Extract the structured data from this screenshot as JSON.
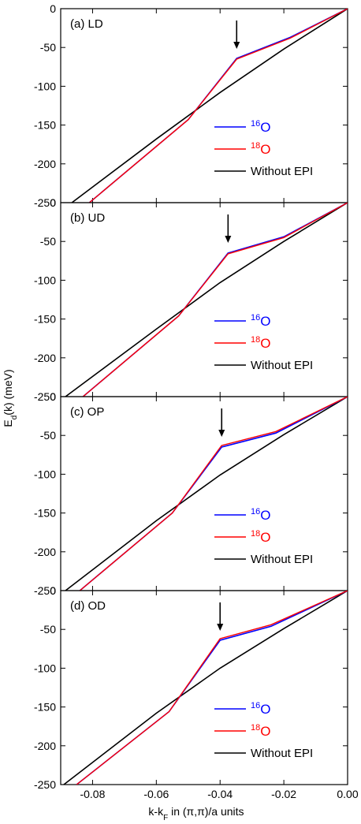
{
  "chart_data": {
    "type": "line",
    "xlabel": "k-k",
    "xlabel_sub": "F",
    "xlabel_rest": " in (π,π)/a units",
    "ylabel": "E",
    "ylabel_sub": "d",
    "ylabel_rest": "(k) (meV)",
    "xlim": [
      -0.09,
      0.0
    ],
    "ylim": [
      -250,
      0
    ],
    "x_ticks": [
      "-0.08",
      "-0.06",
      "-0.04",
      "-0.02",
      "0.00"
    ],
    "x_tick_values": [
      -0.08,
      -0.06,
      -0.04,
      -0.02,
      0.0
    ],
    "y_ticks": [
      "0",
      "-50",
      "-100",
      "-150",
      "-200",
      "-250"
    ],
    "y_tick_values": [
      0,
      -50,
      -100,
      -150,
      -200,
      -250
    ],
    "colors": {
      "o16": "#0000ff",
      "o18": "#ff0000",
      "noepi": "#000000"
    },
    "legend": {
      "o16": {
        "sup": "16",
        "base": "O"
      },
      "o18": {
        "sup": "18",
        "base": "O"
      },
      "noepi": {
        "label": "Without EPI"
      }
    },
    "panels": [
      {
        "label": "(a) LD",
        "arrow_x": -0.0348,
        "o16": {
          "x": [
            -0.081,
            -0.05,
            -0.0348,
            -0.018,
            0.0
          ],
          "y": [
            -250,
            -143,
            -64,
            -37,
            0
          ]
        },
        "o18": {
          "x": [
            -0.081,
            -0.05,
            -0.0348,
            -0.018,
            0.0
          ],
          "y": [
            -250,
            -143,
            -65,
            -38,
            0
          ]
        },
        "noepi": {
          "x": [
            -0.0865,
            -0.06,
            -0.04,
            -0.02,
            0.0
          ],
          "y": [
            -250,
            -168,
            -108,
            -52,
            0
          ]
        }
      },
      {
        "label": "(b) UD",
        "arrow_x": -0.0375,
        "o16": {
          "x": [
            -0.083,
            -0.053,
            -0.0375,
            -0.02,
            0.0
          ],
          "y": [
            -250,
            -146,
            -65,
            -44,
            0
          ]
        },
        "o18": {
          "x": [
            -0.083,
            -0.053,
            -0.0375,
            -0.02,
            0.0
          ],
          "y": [
            -250,
            -146,
            -66,
            -45,
            0
          ]
        },
        "noepi": {
          "x": [
            -0.0885,
            -0.06,
            -0.04,
            -0.02,
            0.0
          ],
          "y": [
            -250,
            -163,
            -103,
            -50,
            0
          ]
        }
      },
      {
        "label": "(c) OP",
        "arrow_x": -0.0395,
        "o16": {
          "x": [
            -0.084,
            -0.055,
            -0.0395,
            -0.0225,
            0.0
          ],
          "y": [
            -250,
            -150,
            -65,
            -47,
            0
          ]
        },
        "o18": {
          "x": [
            -0.084,
            -0.055,
            -0.0395,
            -0.0225,
            0.0
          ],
          "y": [
            -250,
            -150,
            -63,
            -45,
            0
          ]
        },
        "noepi": {
          "x": [
            -0.0885,
            -0.06,
            -0.04,
            -0.02,
            0.0
          ],
          "y": [
            -250,
            -160,
            -101,
            -49,
            0
          ]
        }
      },
      {
        "label": "(d) OD",
        "arrow_x": -0.04,
        "o16": {
          "x": [
            -0.085,
            -0.056,
            -0.04,
            -0.024,
            0.0
          ],
          "y": [
            -250,
            -156,
            -64,
            -46,
            0
          ]
        },
        "o18": {
          "x": [
            -0.085,
            -0.056,
            -0.04,
            -0.024,
            0.0
          ],
          "y": [
            -250,
            -156,
            -62,
            -44,
            0
          ]
        },
        "noepi": {
          "x": [
            -0.089,
            -0.06,
            -0.04,
            -0.02,
            0.0
          ],
          "y": [
            -250,
            -158,
            -100,
            -49,
            0
          ]
        }
      }
    ]
  }
}
